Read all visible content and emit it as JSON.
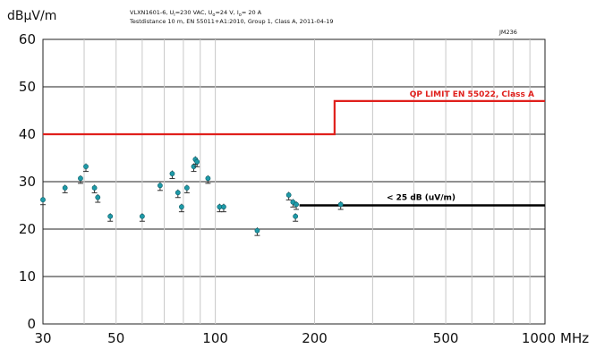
{
  "chart_data": {
    "type": "scatter",
    "ylabel": "dBµV/m",
    "xlabel": "MHz",
    "header": {
      "line1": {
        "a": "VLXN1601-6, U",
        "sub1": "i",
        "b": "=230 VAC, U",
        "sub2": "o",
        "c": "=24 V, I",
        "sub3": "o",
        "d": "= 20 A"
      },
      "line2": "Testdistance 10 m, EN 55011+A1:2010, Group 1, Class A, 2011-04-19",
      "code": "JM236"
    },
    "x_scale": "log",
    "xlim": [
      30,
      1000
    ],
    "ylim": [
      0,
      60
    ],
    "x_ticks": [
      30,
      50,
      100,
      200,
      500,
      1000
    ],
    "x_tick_labels": [
      "30",
      "50",
      "100",
      "200",
      "500",
      "1000"
    ],
    "y_ticks": [
      0,
      10,
      20,
      30,
      40,
      50,
      60
    ],
    "y_tick_labels": [
      "0",
      "10",
      "20",
      "30",
      "40",
      "50",
      "60"
    ],
    "grid": true,
    "limit_line": {
      "label": "QP LIMIT  EN 55022, Class A",
      "color": "#e0201c",
      "points": [
        [
          30,
          40
        ],
        [
          230,
          40
        ],
        [
          230,
          47
        ],
        [
          1000,
          47
        ]
      ]
    },
    "margin_line": {
      "label": "< 25 dB (uV/m)",
      "color": "#000000",
      "points": [
        [
          180,
          25
        ],
        [
          1000,
          25
        ]
      ]
    },
    "measurements": {
      "color": "#1e9aa8",
      "points": [
        [
          30,
          26
        ],
        [
          35,
          28.5
        ],
        [
          39,
          30.5
        ],
        [
          40.5,
          33
        ],
        [
          43,
          28.5
        ],
        [
          44,
          26.5
        ],
        [
          48,
          22.5
        ],
        [
          60,
          22.5
        ],
        [
          68,
          29
        ],
        [
          74,
          31.5
        ],
        [
          77,
          27.5
        ],
        [
          79,
          24.5
        ],
        [
          82,
          28.5
        ],
        [
          86,
          33
        ],
        [
          87,
          34.5
        ],
        [
          88,
          34
        ],
        [
          95,
          30.5
        ],
        [
          103,
          24.5
        ],
        [
          106,
          24.5
        ],
        [
          134,
          19.5
        ],
        [
          167,
          27
        ],
        [
          172,
          25.5
        ],
        [
          175,
          22.5
        ],
        [
          176,
          25
        ],
        [
          240,
          25
        ]
      ]
    }
  }
}
